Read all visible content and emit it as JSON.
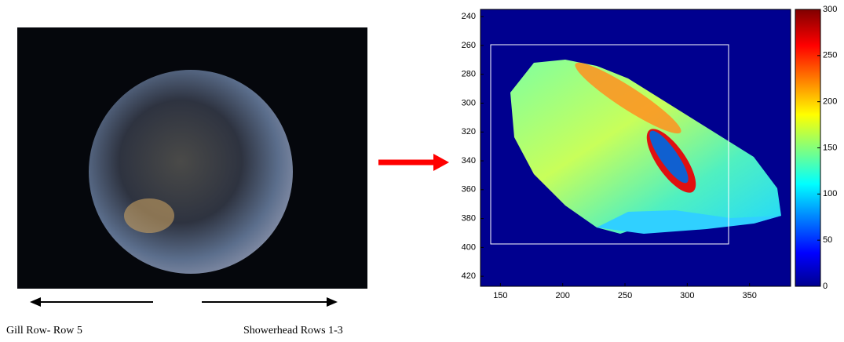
{
  "captions": {
    "left": "Gill Row- Row 5",
    "right": "Showerhead Rows 1-3"
  },
  "chart_data": {
    "type": "heatmap",
    "xlim": [
      134,
      383
    ],
    "xticks": [
      150,
      200,
      250,
      300,
      350
    ],
    "ylim": [
      235,
      427
    ],
    "y_inverted": true,
    "yticks": [
      240,
      260,
      280,
      300,
      320,
      340,
      360,
      380,
      400,
      420
    ],
    "colorbar": {
      "lim": [
        0,
        300
      ],
      "ticks": [
        0,
        50,
        100,
        150,
        200,
        250,
        300
      ]
    }
  }
}
